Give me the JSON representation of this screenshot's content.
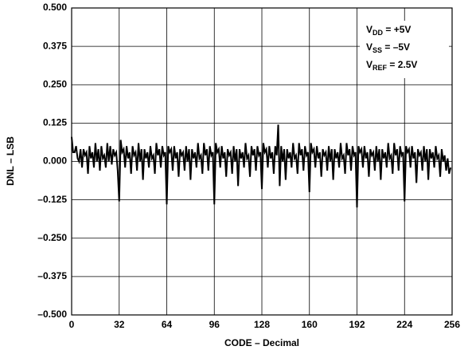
{
  "chart_data": {
    "type": "line",
    "x_label": "CODE – Decimal",
    "y_label": "DNL – LSB",
    "annotations": [
      {
        "symbol": "V",
        "subscript": "DD",
        "text": " = +5V"
      },
      {
        "symbol": "V",
        "subscript": "SS",
        "text": " = –5V"
      },
      {
        "symbol": "V",
        "subscript": "REF",
        "text": " = 2.5V"
      }
    ],
    "xlim": [
      0,
      256
    ],
    "xticks": [
      0,
      32,
      64,
      96,
      128,
      160,
      192,
      224,
      256
    ],
    "ylim": [
      -0.5,
      0.5
    ],
    "yticks": [
      {
        "value": 0.5,
        "label": "0.500"
      },
      {
        "value": 0.375,
        "label": "0.375"
      },
      {
        "value": 0.25,
        "label": "0.250"
      },
      {
        "value": 0.125,
        "label": "0.125"
      },
      {
        "value": 0,
        "label": "0.000"
      },
      {
        "value": -0.125,
        "label": "–0.125"
      },
      {
        "value": -0.25,
        "label": "–0.250"
      },
      {
        "value": -0.375,
        "label": "–0.375"
      },
      {
        "value": -0.5,
        "label": "–0.500"
      }
    ],
    "grid": true,
    "x": [
      0,
      1,
      2,
      3,
      4,
      5,
      6,
      7,
      8,
      9,
      10,
      11,
      12,
      13,
      14,
      15,
      16,
      17,
      18,
      19,
      20,
      21,
      22,
      23,
      24,
      25,
      26,
      27,
      28,
      29,
      30,
      31,
      32,
      33,
      34,
      35,
      36,
      37,
      38,
      39,
      40,
      41,
      42,
      43,
      44,
      45,
      46,
      47,
      48,
      49,
      50,
      51,
      52,
      53,
      54,
      55,
      56,
      57,
      58,
      59,
      60,
      61,
      62,
      63,
      64,
      65,
      66,
      67,
      68,
      69,
      70,
      71,
      72,
      73,
      74,
      75,
      76,
      77,
      78,
      79,
      80,
      81,
      82,
      83,
      84,
      85,
      86,
      87,
      88,
      89,
      90,
      91,
      92,
      93,
      94,
      95,
      96,
      97,
      98,
      99,
      100,
      101,
      102,
      103,
      104,
      105,
      106,
      107,
      108,
      109,
      110,
      111,
      112,
      113,
      114,
      115,
      116,
      117,
      118,
      119,
      120,
      121,
      122,
      123,
      124,
      125,
      126,
      127,
      128,
      129,
      130,
      131,
      132,
      133,
      134,
      135,
      136,
      137,
      138,
      139,
      140,
      141,
      142,
      143,
      144,
      145,
      146,
      147,
      148,
      149,
      150,
      151,
      152,
      153,
      154,
      155,
      156,
      157,
      158,
      159,
      160,
      161,
      162,
      163,
      164,
      165,
      166,
      167,
      168,
      169,
      170,
      171,
      172,
      173,
      174,
      175,
      176,
      177,
      178,
      179,
      180,
      181,
      182,
      183,
      184,
      185,
      186,
      187,
      188,
      189,
      190,
      191,
      192,
      193,
      194,
      195,
      196,
      197,
      198,
      199,
      200,
      201,
      202,
      203,
      204,
      205,
      206,
      207,
      208,
      209,
      210,
      211,
      212,
      213,
      214,
      215,
      216,
      217,
      218,
      219,
      220,
      221,
      222,
      223,
      224,
      225,
      226,
      227,
      228,
      229,
      230,
      231,
      232,
      233,
      234,
      235,
      236,
      237,
      238,
      239,
      240,
      241,
      242,
      243,
      244,
      245,
      246,
      247,
      248,
      249,
      250,
      251,
      252,
      253,
      254,
      255
    ],
    "series": [
      {
        "color": "#000000",
        "values": [
          0.08,
          0.03,
          0.03,
          0.05,
          0.01,
          0.0,
          0.04,
          -0.02,
          0.04,
          0.02,
          0.03,
          -0.04,
          0.05,
          0.01,
          0.03,
          -0.02,
          0.06,
          0.0,
          0.04,
          -0.03,
          0.05,
          0.01,
          0.02,
          -0.02,
          0.06,
          0.0,
          0.05,
          -0.01,
          0.04,
          0.02,
          0.03,
          -0.03,
          -0.13,
          0.07,
          0.03,
          0.04,
          -0.02,
          0.05,
          0.01,
          0.03,
          -0.04,
          0.05,
          0.02,
          0.03,
          -0.03,
          0.06,
          0.0,
          0.04,
          -0.06,
          0.04,
          0.01,
          0.03,
          -0.02,
          0.05,
          0.01,
          0.02,
          -0.04,
          0.06,
          0.02,
          0.04,
          -0.02,
          0.05,
          0.02,
          0.03,
          -0.14,
          0.05,
          0.03,
          0.04,
          -0.03,
          0.05,
          0.01,
          0.03,
          -0.05,
          0.04,
          0.02,
          0.03,
          -0.03,
          0.05,
          0.0,
          0.04,
          -0.06,
          0.04,
          0.01,
          0.03,
          -0.02,
          0.06,
          0.01,
          0.02,
          -0.04,
          0.06,
          0.02,
          0.04,
          -0.03,
          0.05,
          0.02,
          0.03,
          -0.14,
          0.06,
          0.03,
          0.04,
          -0.02,
          0.05,
          0.01,
          0.03,
          -0.05,
          0.04,
          0.02,
          0.03,
          -0.04,
          0.05,
          0.0,
          0.04,
          -0.08,
          0.04,
          0.01,
          0.03,
          -0.02,
          0.06,
          0.01,
          0.02,
          -0.05,
          0.05,
          0.02,
          0.04,
          -0.03,
          0.05,
          0.02,
          0.03,
          -0.09,
          0.06,
          0.03,
          0.04,
          -0.02,
          0.05,
          0.01,
          0.03,
          -0.04,
          0.05,
          0.02,
          0.12,
          -0.08,
          0.05,
          0.0,
          0.04,
          -0.06,
          0.04,
          0.01,
          0.03,
          -0.02,
          0.06,
          0.01,
          0.02,
          -0.04,
          0.06,
          0.02,
          0.04,
          -0.03,
          0.05,
          0.02,
          0.03,
          -0.1,
          0.06,
          0.03,
          0.04,
          -0.02,
          0.05,
          0.01,
          0.03,
          -0.05,
          0.04,
          0.02,
          0.03,
          -0.03,
          0.05,
          0.0,
          0.04,
          -0.06,
          0.04,
          0.01,
          0.03,
          -0.02,
          0.06,
          0.01,
          0.02,
          -0.04,
          0.06,
          0.02,
          0.04,
          -0.03,
          0.05,
          0.02,
          0.03,
          -0.15,
          0.05,
          0.03,
          0.04,
          -0.02,
          0.05,
          0.01,
          0.03,
          -0.05,
          0.04,
          0.02,
          0.03,
          -0.03,
          0.05,
          0.0,
          0.04,
          -0.06,
          0.04,
          0.01,
          0.03,
          -0.02,
          0.06,
          0.01,
          0.02,
          -0.04,
          0.06,
          0.02,
          0.04,
          -0.03,
          0.05,
          0.02,
          0.03,
          -0.13,
          0.05,
          0.03,
          0.04,
          -0.02,
          0.05,
          0.01,
          0.03,
          -0.07,
          0.04,
          0.02,
          0.03,
          -0.03,
          0.05,
          0.0,
          0.04,
          -0.06,
          0.04,
          0.01,
          0.03,
          -0.02,
          0.05,
          0.01,
          0.02,
          -0.05,
          0.04,
          0.0,
          0.02,
          -0.03,
          0.01,
          -0.04,
          -0.02
        ]
      }
    ]
  }
}
